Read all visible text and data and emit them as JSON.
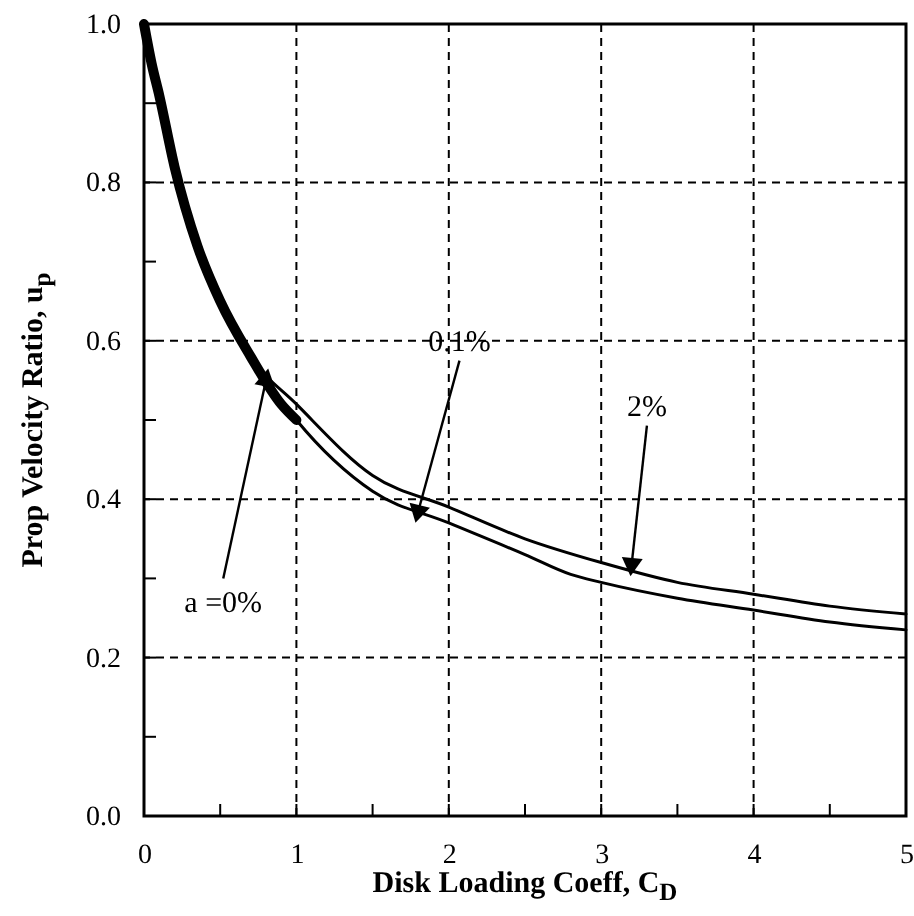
{
  "chart_data": {
    "type": "line",
    "xlabel": "Disk Loading Coeff, C$_{D}$",
    "ylabel": "Prop Velocity Ratio, u$_{p}$",
    "xlim": [
      0,
      5
    ],
    "ylim": [
      0,
      1
    ],
    "xticks": [
      0,
      {
        "value": 0.5,
        "label": null
      },
      1,
      {
        "value": 1.5,
        "label": null
      },
      2,
      {
        "value": 2.5,
        "label": null
      },
      3,
      {
        "value": 3.5,
        "label": null
      },
      4,
      {
        "value": 4.5,
        "label": null
      },
      5
    ],
    "yticks": [
      {
        "value": 0,
        "label": "0.0"
      },
      {
        "value": 0.1,
        "label": null
      },
      {
        "value": 0.2,
        "label": "0.2"
      },
      {
        "value": 0.3,
        "label": null
      },
      {
        "value": 0.4,
        "label": "0.4"
      },
      {
        "value": 0.5,
        "label": null
      },
      {
        "value": 0.6,
        "label": "0.6"
      },
      {
        "value": 0.7,
        "label": null
      },
      {
        "value": 0.8,
        "label": "0.8"
      },
      {
        "value": 0.9,
        "label": null
      },
      {
        "value": 1,
        "label": "1.0"
      }
    ],
    "grid": true,
    "series": [
      {
        "color": "#000000",
        "x": [
          0,
          0.05,
          0.1,
          0.2,
          0.35,
          0.5,
          0.7,
          0.9,
          1.0
        ],
        "values": [
          1.0,
          0.95,
          0.91,
          0.82,
          0.72,
          0.65,
          0.58,
          0.52,
          0.5
        ]
      },
      {
        "color": "#000000",
        "x": [
          0,
          0.1,
          0.2,
          0.35,
          0.5,
          0.7,
          1.0,
          1.5,
          2,
          2.5,
          2.8,
          3,
          3.5,
          4,
          4.5,
          5
        ],
        "values": [
          1.0,
          0.91,
          0.82,
          0.72,
          0.65,
          0.58,
          0.5,
          0.41,
          0.37,
          0.33,
          0.305,
          0.295,
          0.275,
          0.26,
          0.245,
          0.235
        ]
      },
      {
        "color": "#000000",
        "x": [
          0,
          0.1,
          0.2,
          0.35,
          0.5,
          0.7,
          1.0,
          1.5,
          2,
          2.5,
          3,
          3.5,
          4,
          4.5,
          5
        ],
        "values": [
          1.0,
          0.91,
          0.82,
          0.72,
          0.65,
          0.58,
          0.52,
          0.43,
          0.39,
          0.35,
          0.32,
          0.295,
          0.28,
          0.265,
          0.255
        ]
      }
    ],
    "annotations": [
      {
        "text": "a =0%",
        "x": 0.8,
        "y": 0.55
      },
      {
        "text": "0.1%",
        "x": 1.8,
        "y": 0.385
      },
      {
        "text": "2%",
        "x": 3.2,
        "y": 0.318
      }
    ]
  }
}
